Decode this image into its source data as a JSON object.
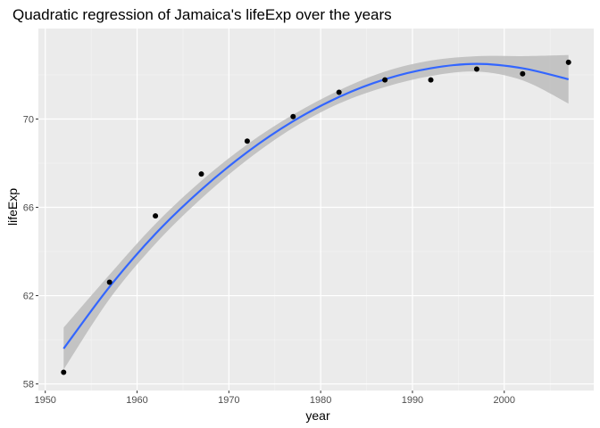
{
  "chart_data": {
    "type": "scatter",
    "title": "Quadratic regression of Jamaica's lifeExp over the years",
    "xlabel": "year",
    "ylabel": "lifeExp",
    "xlim": [
      1949.25,
      2009.75
    ],
    "ylim": [
      57.7,
      74.1
    ],
    "x_ticks": [
      1950,
      1960,
      1970,
      1980,
      1990,
      2000
    ],
    "y_ticks": [
      58,
      62,
      66,
      70
    ],
    "grid": true,
    "legend": "none",
    "points": {
      "x": [
        1952,
        1957,
        1962,
        1967,
        1972,
        1977,
        1982,
        1987,
        1992,
        1997,
        2002,
        2007
      ],
      "y": [
        58.53,
        62.61,
        65.61,
        67.51,
        69.0,
        70.11,
        71.21,
        71.77,
        71.77,
        72.26,
        72.05,
        72.57
      ]
    },
    "fit": {
      "method": "quadratic regression",
      "x": [
        1952,
        1957,
        1962,
        1967,
        1972,
        1977,
        1982,
        1987,
        1992,
        1997,
        2002,
        2007
      ],
      "y": [
        59.6,
        62.4,
        64.8,
        66.8,
        68.5,
        69.9,
        71.0,
        71.8,
        72.3,
        72.5,
        72.3,
        71.8
      ],
      "ci_low": [
        58.65,
        61.85,
        64.35,
        66.4,
        68.15,
        69.6,
        70.7,
        71.45,
        71.95,
        72.15,
        71.75,
        70.7
      ],
      "ci_high": [
        60.55,
        62.95,
        65.25,
        67.2,
        68.85,
        70.2,
        71.3,
        72.15,
        72.65,
        72.85,
        72.85,
        72.9
      ]
    },
    "colors": {
      "panel": "#ebebeb",
      "grid_major": "#ffffff",
      "grid_minor": "#f5f5f5",
      "point": "#000000",
      "fit_line": "#3366ff",
      "ribbon": "#bcbcbc"
    }
  }
}
